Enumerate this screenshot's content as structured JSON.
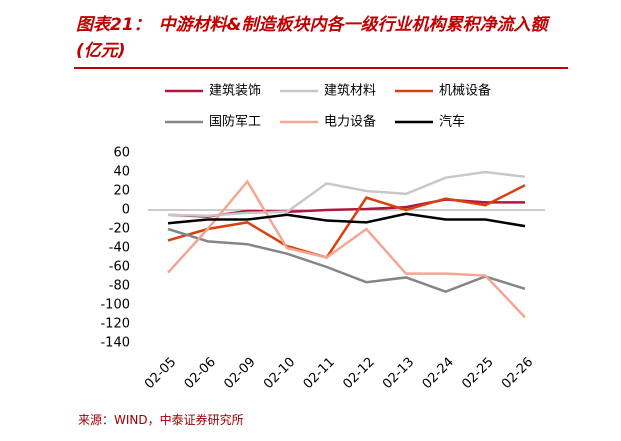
{
  "chart_data": {
    "type": "line",
    "title_label": "图表21：",
    "title": "中游材料&制造板块内各一级行业机构累积净流入额(亿元)",
    "source": "来源：WIND，中泰证券研究所",
    "categories": [
      "02-05",
      "02-06",
      "02-09",
      "02-10",
      "02-11",
      "02-12",
      "02-13",
      "02-24",
      "02-25",
      "02-26"
    ],
    "ylim": [
      -140,
      60
    ],
    "yticks": [
      60,
      40,
      20,
      0,
      -20,
      -40,
      -60,
      -80,
      -100,
      -120,
      -140
    ],
    "series": [
      {
        "name": "建筑装饰",
        "color": "#b0163e",
        "values": [
          -5,
          -7,
          -1,
          -2,
          0,
          1,
          3,
          11,
          8,
          8
        ]
      },
      {
        "name": "建筑材料",
        "color": "#c8c8c8",
        "values": [
          -5,
          -6,
          -3,
          -2,
          28,
          20,
          17,
          34,
          40,
          35
        ]
      },
      {
        "name": "机械设备",
        "color": "#d9400f",
        "values": [
          -32,
          -20,
          -13,
          -38,
          -50,
          13,
          0,
          12,
          5,
          26
        ]
      },
      {
        "name": "国防军工",
        "color": "#858585",
        "values": [
          -20,
          -33,
          -36,
          -46,
          -60,
          -76,
          -71,
          -86,
          -70,
          -83
        ]
      },
      {
        "name": "电力设备",
        "color": "#f5a593",
        "values": [
          -66,
          -20,
          30,
          -40,
          -50,
          -20,
          -67,
          -67,
          -69,
          -113
        ]
      },
      {
        "name": "汽车",
        "color": "#000000",
        "values": [
          -14,
          -10,
          -10,
          -5,
          -11,
          -13,
          -4,
          -10,
          -10,
          -17
        ]
      }
    ]
  }
}
